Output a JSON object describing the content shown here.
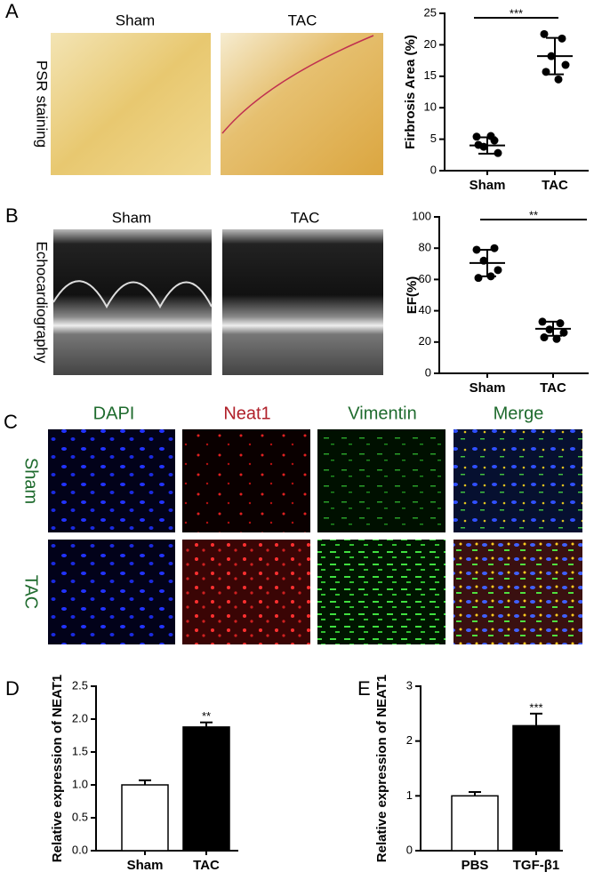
{
  "panels": {
    "a": {
      "letter": "A",
      "images": [
        "Sham",
        "TAC"
      ],
      "side_label": "PSR staining"
    },
    "b": {
      "letter": "B",
      "images": [
        "Sham",
        "TAC"
      ],
      "side_label": "Echocardiography"
    },
    "c": {
      "letter": "C",
      "columns": [
        "DAPI",
        "Neat1",
        "Vimentin",
        "Merge"
      ],
      "rows": [
        "Sham",
        "TAC"
      ]
    },
    "d": {
      "letter": "D"
    },
    "e": {
      "letter": "E"
    }
  },
  "chart_data": [
    {
      "type": "scatter",
      "y_label": "Firbrosis Area (%)",
      "categories": [
        "Sham",
        "TAC"
      ],
      "values": [
        [
          5.4,
          4.8,
          3.8,
          2.8,
          4.1,
          5.5
        ],
        [
          21.7,
          21.0,
          18.2,
          16.8,
          15.7,
          14.5
        ]
      ],
      "mean": [
        4.0,
        18.2
      ],
      "sd": [
        1.3,
        2.9
      ],
      "color": "#000000",
      "ylim": [
        0,
        25
      ],
      "yticks": [
        0,
        5,
        10,
        15,
        20,
        25
      ],
      "annotation": "***"
    },
    {
      "type": "scatter",
      "y_label": "EF(%)",
      "categories": [
        "Sham",
        "TAC"
      ],
      "values": [
        [
          79,
          80,
          72,
          66,
          61,
          62
        ],
        [
          33,
          32,
          28,
          26,
          23,
          22
        ]
      ],
      "mean": [
        70.5,
        28.5
      ],
      "sd": [
        8.5,
        4.5
      ],
      "color": "#000000",
      "ylim": [
        0,
        100
      ],
      "yticks": [
        0,
        20,
        40,
        60,
        80,
        100
      ],
      "annotation": "**"
    },
    {
      "type": "bar",
      "y_label": "Relative expression of NEAT1",
      "categories": [
        "Sham",
        "TAC"
      ],
      "values": [
        1.0,
        1.88
      ],
      "errors": [
        0.07,
        0.07
      ],
      "colors": [
        "#ffffff",
        "#000000"
      ],
      "ylim": [
        0,
        2.5
      ],
      "yticks": [
        {
          "value": 0,
          "label": "0.0"
        },
        {
          "value": 0.5,
          "label": "0.5"
        },
        {
          "value": 1,
          "label": "1.0"
        },
        {
          "value": 1.5,
          "label": "1.5"
        },
        {
          "value": 2,
          "label": "2.0"
        },
        {
          "value": 2.5,
          "label": "2.5"
        }
      ],
      "annotation": "**"
    },
    {
      "type": "bar",
      "y_label": "Relative expression of NEAT1",
      "categories": [
        "PBS",
        "TGF-β1"
      ],
      "values": [
        1.0,
        2.28
      ],
      "errors": [
        0.07,
        0.22
      ],
      "colors": [
        "#ffffff",
        "#000000"
      ],
      "ylim": [
        0,
        3
      ],
      "yticks": [
        0,
        1,
        2,
        3
      ],
      "annotation": "***"
    }
  ]
}
